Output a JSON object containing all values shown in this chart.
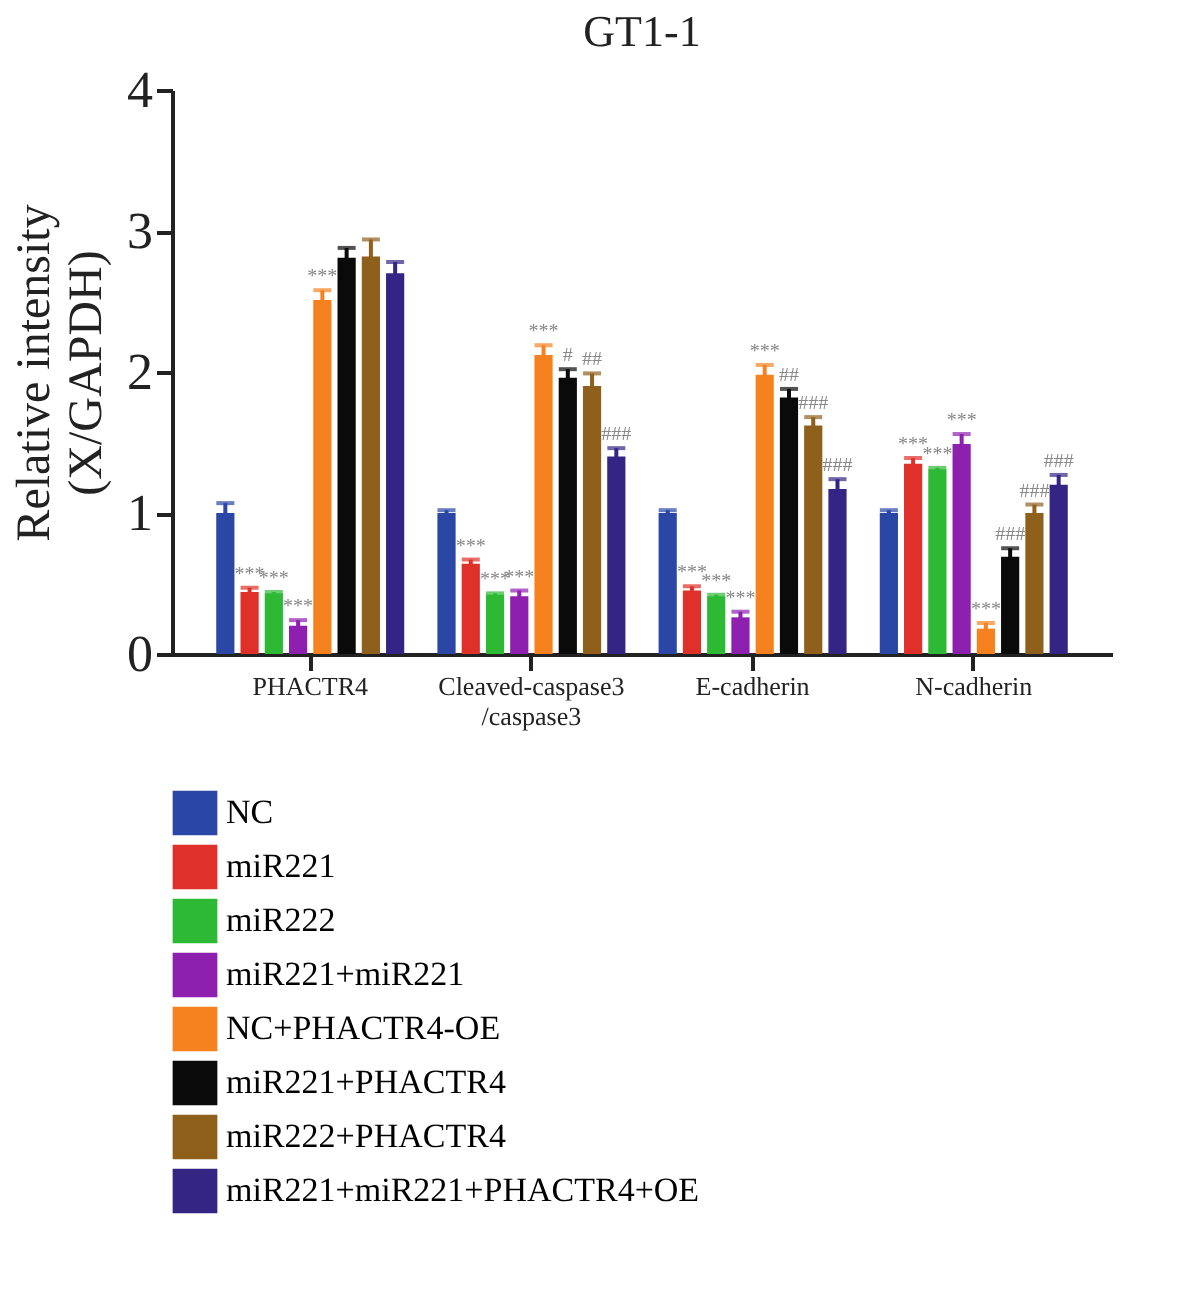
{
  "chart_data": {
    "type": "bar",
    "title": "GT1-1",
    "ylabel": "Relative intensity\n(X/GAPDH)",
    "categories": [
      "PHACTR4",
      "Cleaved-caspase3\n/caspase3",
      "E-cadherin",
      "N-cadherin"
    ],
    "ylim": [
      0,
      4
    ],
    "yticks": [
      0,
      1,
      2,
      3,
      4
    ],
    "grid": false,
    "legend": "bottom",
    "series": [
      {
        "name": "NC",
        "color": "#2a47a6",
        "values": [
          1.0,
          1.0,
          1.0,
          1.0
        ],
        "errors": [
          0.07,
          0.02,
          0.02,
          0.02
        ]
      },
      {
        "name": "miR221",
        "color": "#e0302a",
        "values": [
          0.44,
          0.64,
          0.45,
          1.35
        ],
        "errors": [
          0.03,
          0.03,
          0.03,
          0.04
        ],
        "value_labels": [
          "***",
          "***",
          "***",
          "***"
        ]
      },
      {
        "name": "miR222",
        "color": "#2db934",
        "values": [
          0.43,
          0.42,
          0.41,
          1.31
        ],
        "errors": [
          0.01,
          0.01,
          0.01,
          0.01
        ],
        "value_labels": [
          "***",
          "***",
          "***",
          "***"
        ]
      },
      {
        "name": "miR221+miR221",
        "color": "#8e20b0",
        "values": [
          0.2,
          0.41,
          0.26,
          1.49
        ],
        "errors": [
          0.04,
          0.04,
          0.04,
          0.07
        ],
        "value_labels": [
          "***",
          "***",
          "***",
          "***"
        ]
      },
      {
        "name": "NC+PHACTR4-OE",
        "color": "#f6821f",
        "values": [
          2.51,
          2.12,
          1.98,
          0.18
        ],
        "errors": [
          0.07,
          0.07,
          0.07,
          0.04
        ],
        "value_labels": [
          "***",
          "***",
          "***",
          "***"
        ]
      },
      {
        "name": "miR221+PHACTR4",
        "color": "#0a0a0a",
        "values": [
          2.81,
          1.96,
          1.82,
          0.69
        ],
        "errors": [
          0.07,
          0.06,
          0.06,
          0.06
        ],
        "value_labels": [
          null,
          "#",
          "##",
          "###"
        ]
      },
      {
        "name": "miR222+PHACTR4",
        "color": "#8f5f1c",
        "values": [
          2.82,
          1.9,
          1.62,
          1.0
        ],
        "errors": [
          0.12,
          0.09,
          0.06,
          0.06
        ],
        "value_labels": [
          null,
          "##",
          "###",
          "###"
        ]
      },
      {
        "name": "miR221+miR221+PHACTR4+OE",
        "color": "#342585",
        "values": [
          2.7,
          1.4,
          1.17,
          1.2
        ],
        "errors": [
          0.08,
          0.06,
          0.07,
          0.07
        ],
        "value_labels": [
          null,
          "###",
          "###",
          "###"
        ]
      }
    ]
  }
}
